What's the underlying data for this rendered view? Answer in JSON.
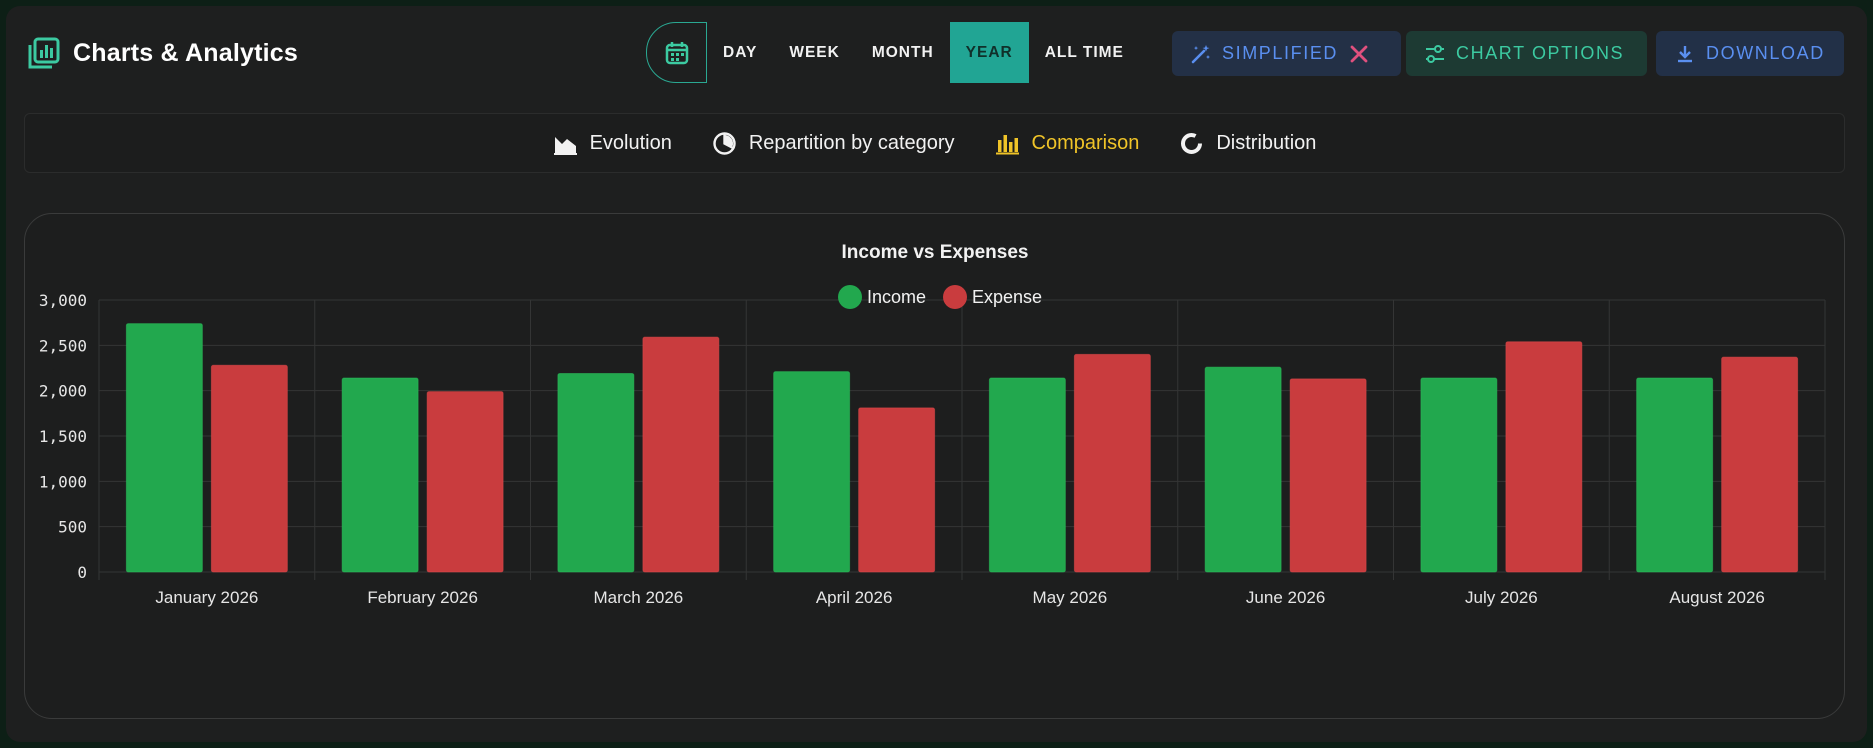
{
  "header": {
    "title": "Charts & Analytics",
    "periods": [
      "DAY",
      "WEEK",
      "MONTH",
      "YEAR",
      "ALL TIME"
    ],
    "active_period": "YEAR",
    "actions": {
      "simplified": "SIMPLIFIED",
      "chart_options": "CHART OPTIONS",
      "download": "DOWNLOAD"
    }
  },
  "tabs": [
    {
      "label": "Evolution",
      "icon": "area-chart-icon"
    },
    {
      "label": "Repartition by category",
      "icon": "pie-chart-icon"
    },
    {
      "label": "Comparison",
      "icon": "bar-chart-icon"
    },
    {
      "label": "Distribution",
      "icon": "donut-chart-icon"
    }
  ],
  "active_tab": "Comparison",
  "colors": {
    "accent": "#21a594",
    "income": "#22a84e",
    "expense": "#c93c3e",
    "active_tab": "#f0c428"
  },
  "chart_data": {
    "type": "bar",
    "title": "Income vs Expenses",
    "categories": [
      "January 2026",
      "February 2026",
      "March 2026",
      "April 2026",
      "May 2026",
      "June 2026",
      "July 2026",
      "August 2026"
    ],
    "series": [
      {
        "name": "Income",
        "values": [
          2740,
          2140,
          2190,
          2210,
          2140,
          2260,
          2140,
          2140
        ]
      },
      {
        "name": "Expense",
        "values": [
          2280,
          1990,
          2590,
          1810,
          2400,
          2130,
          2540,
          2370
        ]
      }
    ],
    "ylim": [
      0,
      3000
    ],
    "yticks": [
      0,
      500,
      1000,
      1500,
      2000,
      2500,
      3000
    ],
    "ytick_labels": [
      "0",
      "500",
      "1,000",
      "1,500",
      "2,000",
      "2,500",
      "3,000"
    ],
    "legend": "top-center",
    "grid": true
  }
}
